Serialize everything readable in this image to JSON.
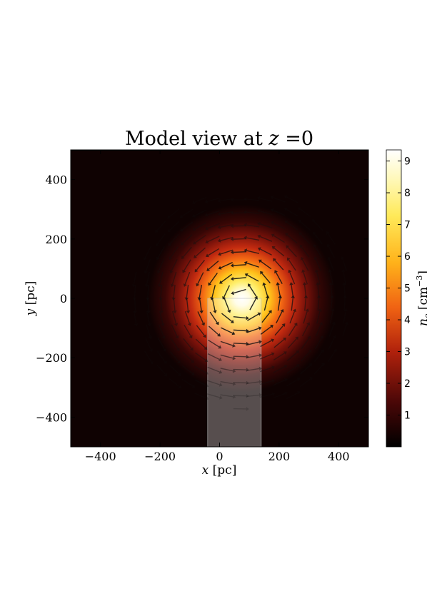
{
  "chart_data": {
    "type": "heatmap",
    "title": "Model view at z = 0",
    "title_parts": [
      "Model view at ",
      "z",
      " =0"
    ],
    "xlabel_parts": [
      "x",
      " [pc]"
    ],
    "ylabel_parts": [
      "y",
      " [pc]"
    ],
    "colorbar_label_parts": [
      "n",
      "e",
      " [cm",
      "−3",
      "]"
    ],
    "xlim": [
      -500,
      500
    ],
    "ylim": [
      -500,
      500
    ],
    "xticks": [
      {
        "value": -400,
        "label": "−400"
      },
      {
        "value": -200,
        "label": "−200"
      },
      {
        "value": 0,
        "label": "0"
      },
      {
        "value": 200,
        "label": "200"
      },
      {
        "value": 400,
        "label": "400"
      }
    ],
    "yticks": [
      {
        "value": 400,
        "label": "400"
      },
      {
        "value": 200,
        "label": "200"
      },
      {
        "value": 0,
        "label": "0"
      },
      {
        "value": -200,
        "label": "−200"
      },
      {
        "value": -400,
        "label": "−400"
      }
    ],
    "colorbar": {
      "min": 0,
      "max": 9.35,
      "ticks": [
        {
          "value": 1,
          "label": "1"
        },
        {
          "value": 2,
          "label": "2"
        },
        {
          "value": 3,
          "label": "3"
        },
        {
          "value": 4,
          "label": "4"
        },
        {
          "value": 5,
          "label": "5"
        },
        {
          "value": 6,
          "label": "6"
        },
        {
          "value": 7,
          "label": "7"
        },
        {
          "value": 8,
          "label": "8"
        },
        {
          "value": 9,
          "label": "9"
        }
      ],
      "colormap": "afmhot"
    },
    "density_peak": {
      "x": 75,
      "y": 0,
      "value": 9.35,
      "scale_length": 150
    },
    "overlay_rect": {
      "x0": -40,
      "x1": 140,
      "y0": -500,
      "y1": 0
    },
    "vector_field": {
      "pattern": "azimuthal",
      "center": {
        "x": 75,
        "y": 0
      },
      "grid_spacing": 44
    },
    "grid": false,
    "legend": "none"
  }
}
